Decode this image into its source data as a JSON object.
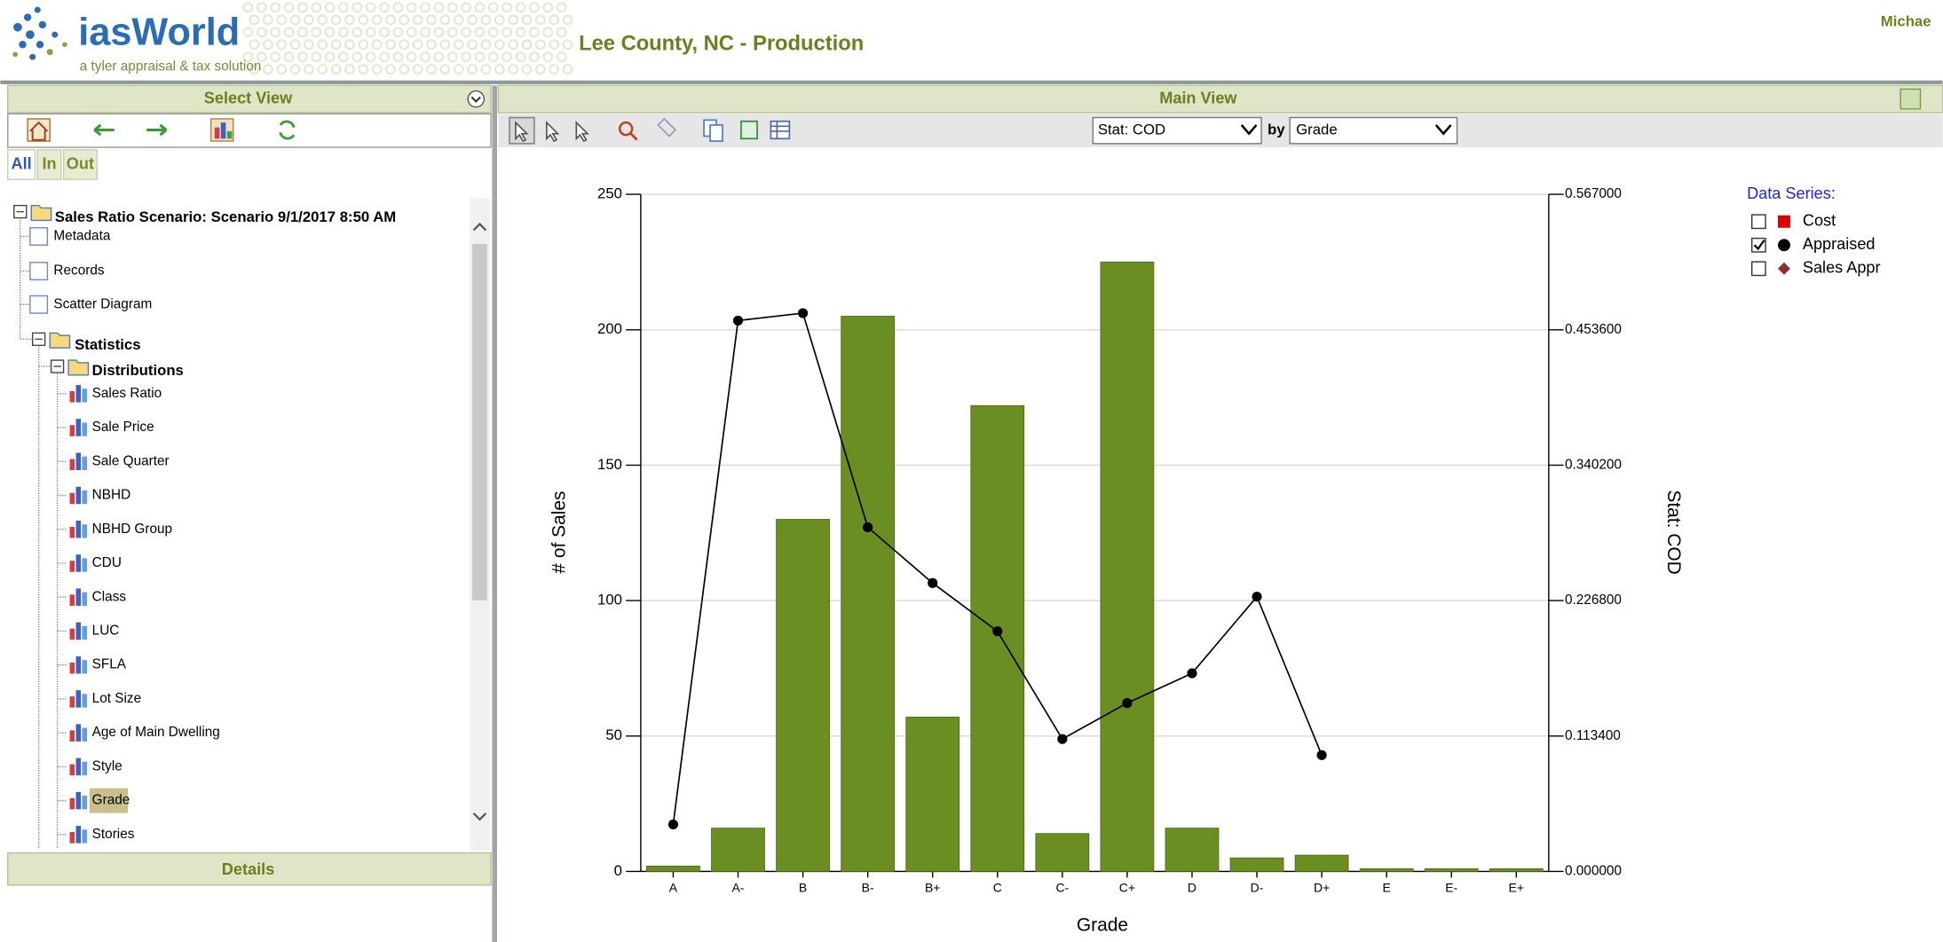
{
  "header": {
    "brand": "iasWorld",
    "tagline": "a tyler appraisal & tax solution",
    "environment": "Lee County, NC - Production",
    "user": "Michae"
  },
  "sidebar": {
    "title": "Select View",
    "tabs": [
      "All",
      "In",
      "Out"
    ],
    "tree": {
      "root": "Sales Ratio Scenario: Scenario 9/1/2017 8:50 AM",
      "items": [
        "Metadata",
        "Records",
        "Scatter Diagram"
      ],
      "statistics": {
        "label": "Statistics",
        "distributions": {
          "label": "Distributions",
          "items": [
            "Sales Ratio",
            "Sale Price",
            "Sale Quarter",
            "NBHD",
            "NBHD Group",
            "CDU",
            "Class",
            "LUC",
            "SFLA",
            "Lot Size",
            "Age of Main Dwelling",
            "Style",
            "Grade",
            "Stories"
          ]
        }
      }
    },
    "details": "Details"
  },
  "main_view": {
    "title": "Main View",
    "stat_select": "Stat: COD",
    "by": "by",
    "group_select": "Grade"
  },
  "data_series_panel": {
    "title": "Data Series:",
    "items": [
      {
        "label": "Cost",
        "checked": false,
        "marker": "square",
        "color": "#e00000"
      },
      {
        "label": "Appraised",
        "checked": true,
        "marker": "circle",
        "color": "#000000"
      },
      {
        "label": "Sales Appr",
        "checked": false,
        "marker": "diamond",
        "color": "#8b2e2e"
      }
    ]
  },
  "chart_data": {
    "type": "bar",
    "x_label": "Grade",
    "y_label": "# of Sales",
    "y2_label": "Stat: COD",
    "categories": [
      "A",
      "A-",
      "B",
      "B-",
      "B+",
      "C",
      "C-",
      "C+",
      "D",
      "D-",
      "D+",
      "E",
      "E-",
      "E+"
    ],
    "series": [
      {
        "type": "bar",
        "color": "#6b8e23",
        "values": [
          2,
          16,
          130,
          205,
          57,
          172,
          14,
          225,
          16,
          5,
          6,
          1,
          1,
          1
        ]
      },
      {
        "type": "line",
        "axis": "y2",
        "color": "#000000",
        "values": [
          0.0394,
          0.4613,
          0.4675,
          0.2882,
          0.2415,
          0.2011,
          0.1109,
          0.141,
          0.1659,
          0.2301,
          0.0974,
          null,
          null,
          null
        ]
      }
    ],
    "ylim": [
      0,
      250
    ],
    "yticks": [
      0,
      50,
      100,
      150,
      200,
      250
    ],
    "y2lim": [
      0,
      0.567
    ],
    "y2ticks": [
      {
        "value": 0,
        "label": "0.000000"
      },
      {
        "value": 0.1134,
        "label": "0.113400"
      },
      {
        "value": 0.2268,
        "label": "0.226800"
      },
      {
        "value": 0.3402,
        "label": "0.340200"
      },
      {
        "value": 0.4536,
        "label": "0.453600"
      },
      {
        "value": 0.567,
        "label": "0.567000"
      }
    ],
    "grid": true
  }
}
